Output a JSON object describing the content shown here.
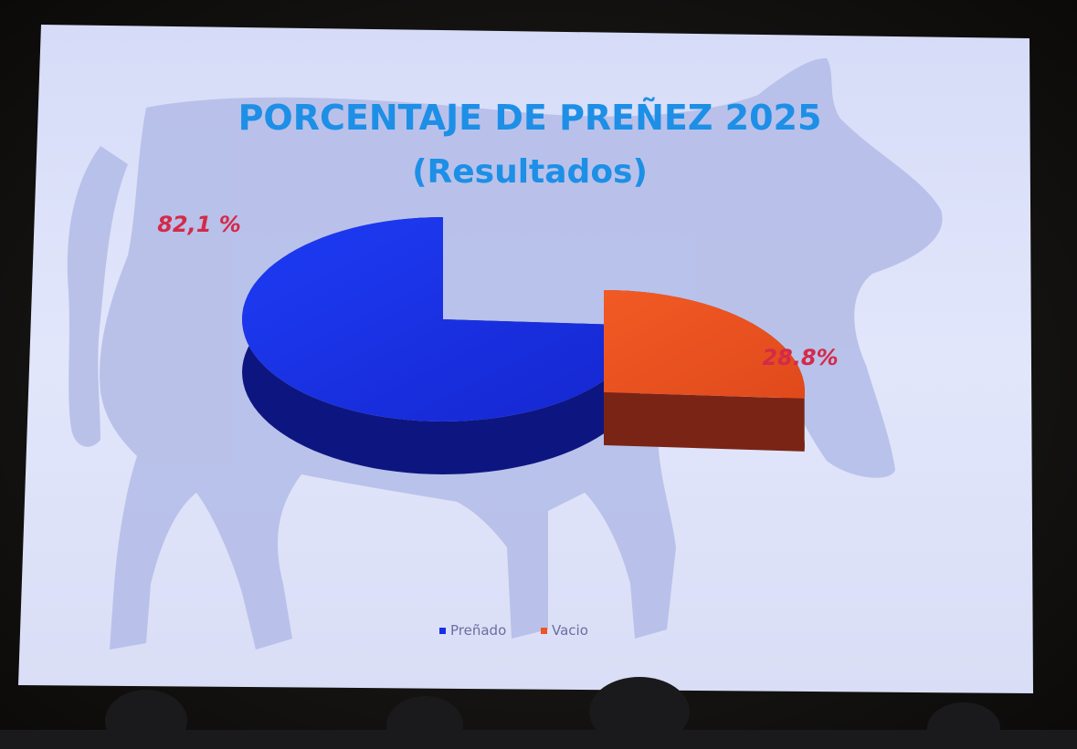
{
  "slide": {
    "title": "PORCENTAJE DE PREÑEZ 2025",
    "subtitle": "(Resultados)"
  },
  "chart_data": {
    "type": "pie",
    "title": "PORCENTAJE DE PREÑEZ 2025",
    "subtitle": "(Resultados)",
    "slices": [
      {
        "name": "Preñado",
        "value": 82.1,
        "label": "82,1 %",
        "color": "#1a2ee8"
      },
      {
        "name": "Vacio",
        "value": 28.8,
        "label": "28.8%",
        "color": "#ee5524"
      }
    ],
    "legend_position": "bottom",
    "legend": [
      {
        "name": "Preñado",
        "color": "#1a2ee8"
      },
      {
        "name": "Vacio",
        "color": "#ee5524"
      }
    ],
    "three_d": true,
    "exploded": true
  },
  "colors": {
    "title": "#1d8fe6",
    "data_label": "#d42a4a",
    "screen": "#dde2fb",
    "silhouette": "#b5bee8",
    "legend_text": "#6a6fa0"
  }
}
